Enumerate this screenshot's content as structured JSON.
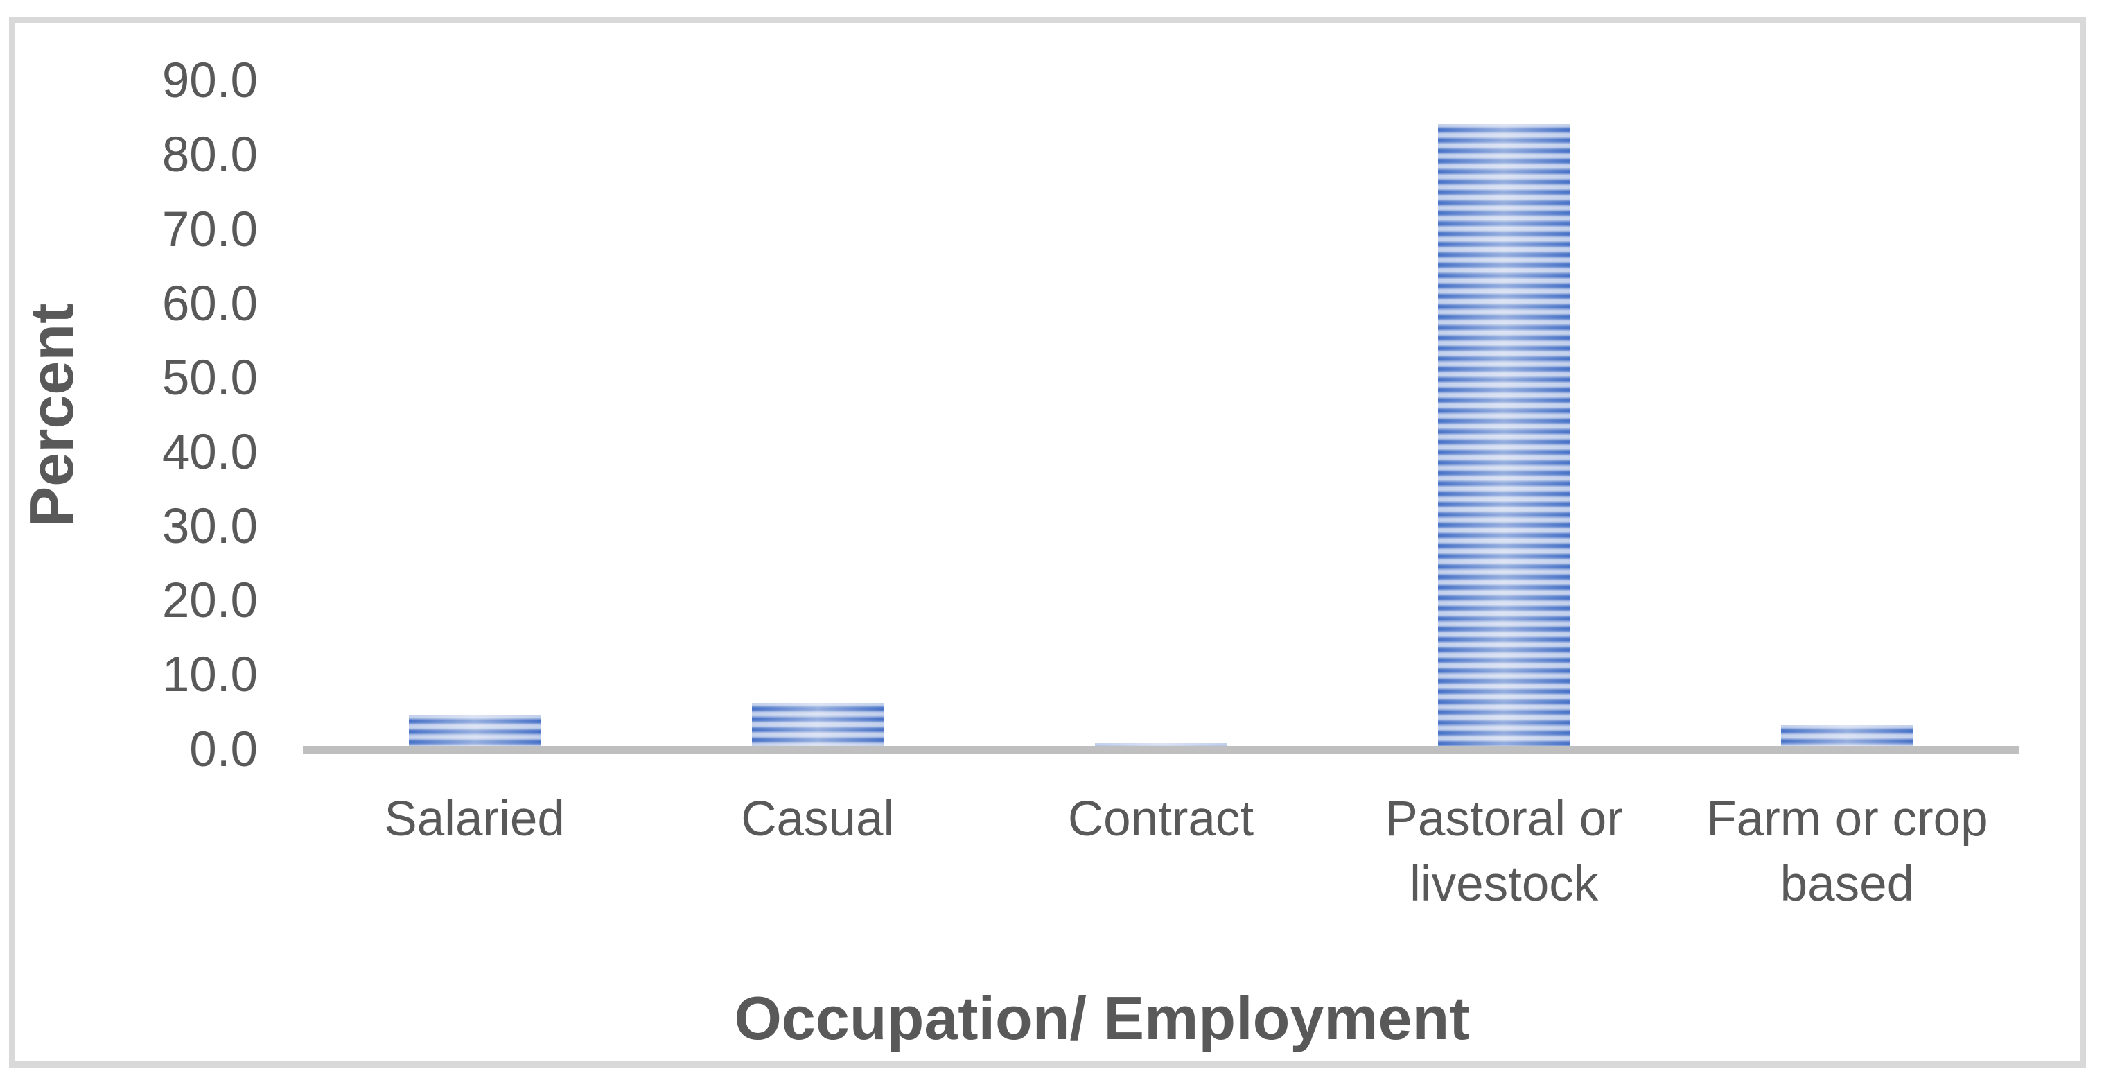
{
  "chart_data": {
    "type": "bar",
    "title": "",
    "categories": [
      "Salaried",
      "Casual",
      "Contract",
      "Pastoral or livestock",
      "Farm or crop based"
    ],
    "category_label_lines": [
      [
        "Salaried"
      ],
      [
        "Casual"
      ],
      [
        "Contract"
      ],
      [
        "Pastoral or",
        "livestock"
      ],
      [
        "Farm or crop",
        "based"
      ]
    ],
    "values": [
      4.6,
      6.3,
      0.8,
      84.2,
      3.3
    ],
    "series_name": "Percent",
    "xlabel": "Occupation/ Employment",
    "ylabel": "Percent",
    "ylim": [
      0,
      90
    ],
    "ytick_step": 10,
    "ytick_labels": [
      "0.0",
      "10.0",
      "20.0",
      "30.0",
      "40.0",
      "50.0",
      "60.0",
      "70.0",
      "80.0",
      "90.0"
    ],
    "grid": false,
    "legend_position": "none",
    "colors": {
      "bar_stripe_dark": "#4a74c8",
      "bar_stripe_light": "#c3d0ec",
      "axis_line": "#bfbfbf",
      "text": "#595959",
      "frame_border": "#d9d9d9",
      "background": "#ffffff"
    }
  }
}
